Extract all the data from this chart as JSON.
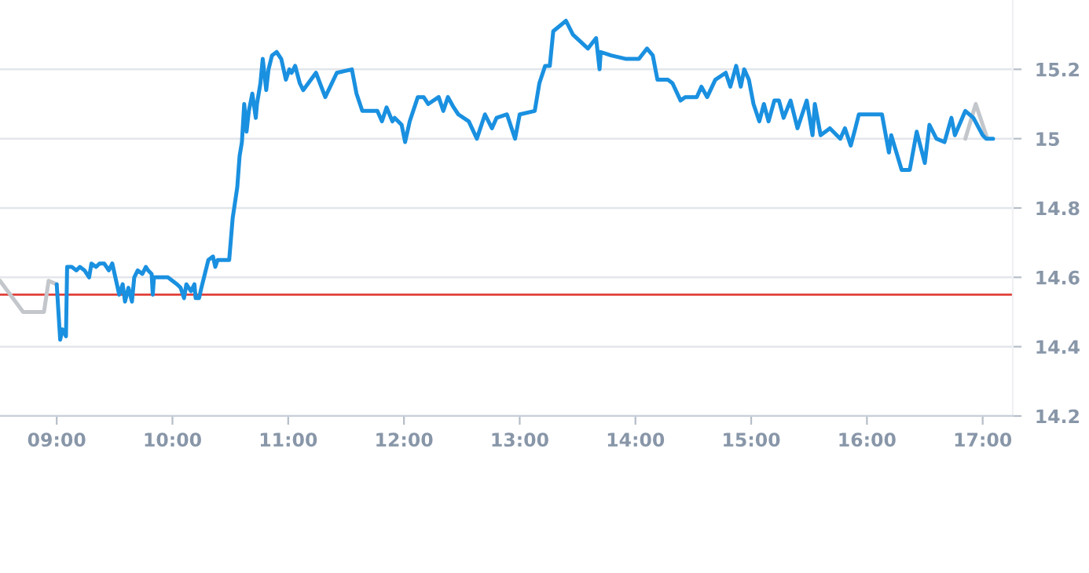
{
  "chart_data": {
    "type": "line",
    "xlim": [
      8.51,
      17.26
    ],
    "ylim": [
      14.2,
      15.4
    ],
    "xticks": [
      {
        "value": 9,
        "label": "09:00"
      },
      {
        "value": 10,
        "label": "10:00"
      },
      {
        "value": 11,
        "label": "11:00"
      },
      {
        "value": 12,
        "label": "12:00"
      },
      {
        "value": 13,
        "label": "13:00"
      },
      {
        "value": 14,
        "label": "14:00"
      },
      {
        "value": 15,
        "label": "15:00"
      },
      {
        "value": 16,
        "label": "16:00"
      },
      {
        "value": 17,
        "label": "17:00"
      }
    ],
    "yticks": [
      14.2,
      14.4,
      14.6,
      14.8,
      {
        "value": 15,
        "label": "15"
      },
      15.2
    ],
    "grid": "y",
    "legend": false,
    "marker": "none",
    "line_style": "solid",
    "ref_lines": [
      {
        "axis": "y",
        "value": 14.55,
        "color": "#e0403a"
      }
    ],
    "series": [
      {
        "color": "#c3c7cc",
        "x": [
          8.51,
          8.71,
          8.89,
          8.93,
          9.0
        ],
        "values": [
          14.59,
          14.5,
          14.5,
          14.59,
          14.58
        ]
      },
      {
        "color": "#c3c7cc",
        "x": [
          16.85,
          16.94,
          17.04
        ],
        "values": [
          15.0,
          15.1,
          15.0
        ]
      },
      {
        "color": "#1a90e0",
        "x": [
          9.0,
          9.03,
          9.05,
          9.08,
          9.09,
          9.13,
          9.17,
          9.2,
          9.24,
          9.28,
          9.3,
          9.34,
          9.37,
          9.41,
          9.45,
          9.48,
          9.5,
          9.54,
          9.57,
          9.59,
          9.62,
          9.65,
          9.67,
          9.7,
          9.74,
          9.77,
          9.79,
          9.82,
          9.83,
          9.84,
          9.96,
          10.04,
          10.07,
          10.1,
          10.12,
          10.16,
          10.19,
          10.2,
          10.23,
          10.25,
          10.31,
          10.35,
          10.37,
          10.39,
          10.49,
          10.52,
          10.56,
          10.58,
          10.6,
          10.62,
          10.64,
          10.66,
          10.69,
          10.72,
          10.73,
          10.76,
          10.78,
          10.81,
          10.83,
          10.86,
          10.9,
          10.94,
          10.98,
          11.01,
          11.03,
          11.06,
          11.1,
          11.13,
          11.24,
          11.32,
          11.42,
          11.55,
          11.59,
          11.64,
          11.68,
          11.77,
          11.81,
          11.85,
          11.9,
          11.92,
          11.98,
          12.01,
          12.05,
          12.12,
          12.17,
          12.21,
          12.3,
          12.34,
          12.38,
          12.43,
          12.47,
          12.56,
          12.63,
          12.7,
          12.76,
          12.8,
          12.89,
          12.96,
          13.0,
          13.13,
          13.17,
          13.22,
          13.26,
          13.29,
          13.4,
          13.46,
          13.59,
          13.66,
          13.69,
          13.7,
          13.79,
          13.92,
          14.03,
          14.1,
          14.15,
          14.19,
          14.28,
          14.32,
          14.39,
          14.43,
          14.53,
          14.57,
          14.62,
          14.69,
          14.78,
          14.82,
          14.87,
          14.91,
          14.94,
          14.98,
          15.02,
          15.07,
          15.11,
          15.15,
          15.2,
          15.24,
          15.28,
          15.34,
          15.4,
          15.48,
          15.53,
          15.55,
          15.6,
          15.68,
          15.77,
          15.81,
          15.86,
          15.9,
          15.93,
          16.13,
          16.19,
          16.21,
          16.3,
          16.37,
          16.43,
          16.5,
          16.54,
          16.6,
          16.67,
          16.73,
          16.76,
          16.85,
          16.92,
          17.0,
          17.03,
          17.09
        ],
        "values": [
          14.58,
          14.42,
          14.45,
          14.43,
          14.63,
          14.63,
          14.62,
          14.63,
          14.62,
          14.6,
          14.64,
          14.63,
          14.64,
          14.64,
          14.62,
          14.64,
          14.61,
          14.55,
          14.58,
          14.53,
          14.57,
          14.53,
          14.6,
          14.62,
          14.61,
          14.63,
          14.62,
          14.61,
          14.55,
          14.6,
          14.6,
          14.58,
          14.57,
          14.54,
          14.58,
          14.56,
          14.58,
          14.54,
          14.54,
          14.57,
          14.65,
          14.66,
          14.63,
          14.65,
          14.65,
          14.77,
          14.86,
          14.95,
          14.99,
          15.1,
          15.02,
          15.08,
          15.13,
          15.06,
          15.1,
          15.16,
          15.23,
          15.14,
          15.2,
          15.24,
          15.25,
          15.23,
          15.17,
          15.2,
          15.19,
          15.21,
          15.16,
          15.14,
          15.19,
          15.12,
          15.19,
          15.2,
          15.13,
          15.08,
          15.08,
          15.08,
          15.05,
          15.09,
          15.05,
          15.06,
          15.04,
          14.99,
          15.05,
          15.12,
          15.12,
          15.1,
          15.12,
          15.08,
          15.12,
          15.09,
          15.07,
          15.05,
          15.0,
          15.07,
          15.03,
          15.06,
          15.07,
          15.0,
          15.07,
          15.08,
          15.16,
          15.21,
          15.21,
          15.31,
          15.34,
          15.3,
          15.26,
          15.29,
          15.2,
          15.25,
          15.24,
          15.23,
          15.23,
          15.26,
          15.24,
          15.17,
          15.17,
          15.16,
          15.11,
          15.12,
          15.12,
          15.15,
          15.12,
          15.17,
          15.19,
          15.15,
          15.21,
          15.15,
          15.2,
          15.17,
          15.1,
          15.05,
          15.1,
          15.05,
          15.11,
          15.11,
          15.06,
          15.11,
          15.03,
          15.11,
          15.01,
          15.1,
          15.01,
          15.03,
          15.0,
          15.03,
          14.98,
          15.03,
          15.07,
          15.07,
          14.96,
          15.01,
          14.91,
          14.91,
          15.02,
          14.93,
          15.04,
          15.0,
          14.99,
          15.06,
          15.01,
          15.08,
          15.06,
          15.01,
          15.0,
          15.0
        ]
      }
    ]
  }
}
